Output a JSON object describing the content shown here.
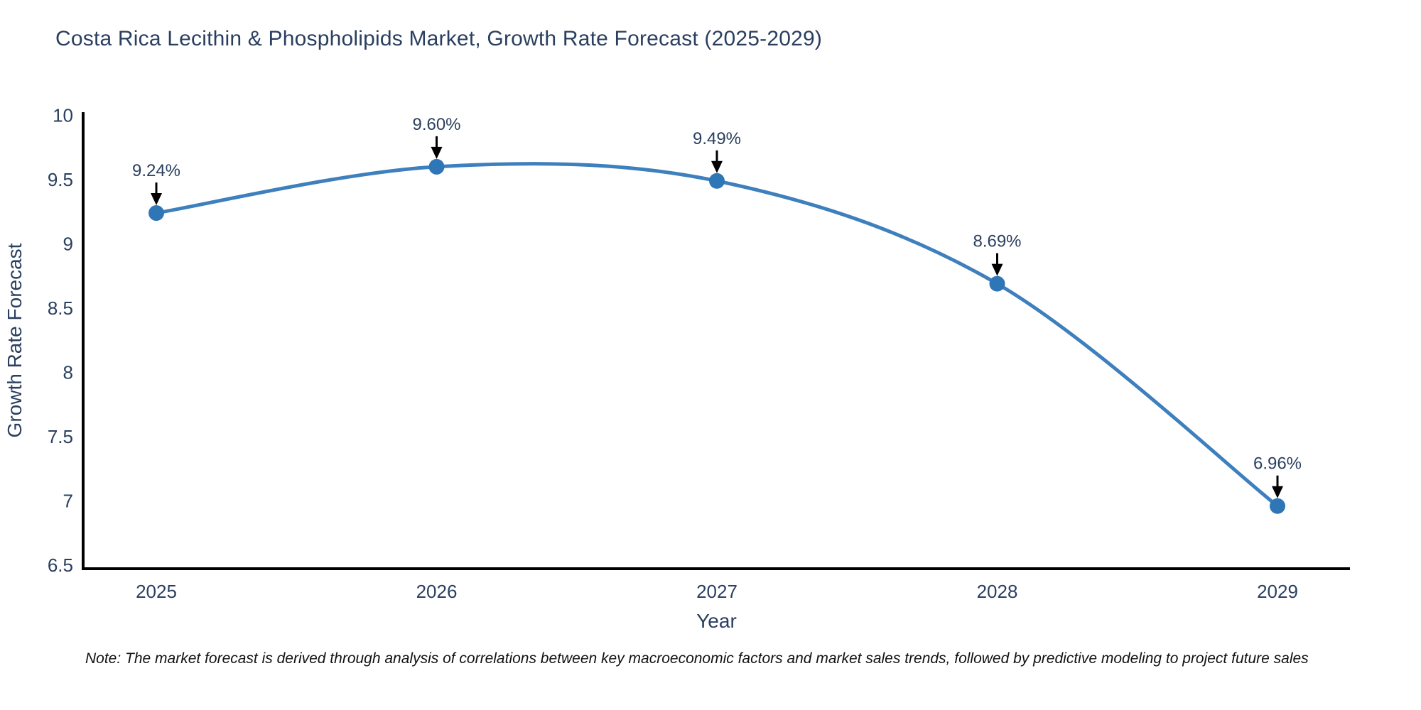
{
  "title": "Costa Rica Lecithin & Phospholipids Market, Growth Rate Forecast (2025-2029)",
  "note": "Note: The market forecast is derived through analysis of correlations between key macroeconomic factors and market sales trends, followed by predictive modeling to project future sales",
  "chart_data": {
    "type": "line",
    "x": [
      "2025",
      "2026",
      "2027",
      "2028",
      "2029"
    ],
    "values": [
      9.24,
      9.6,
      9.49,
      8.69,
      6.96
    ],
    "point_labels": [
      "9.24%",
      "9.60%",
      "9.49%",
      "8.69%",
      "6.96%"
    ],
    "xlabel": "Year",
    "ylabel": "Growth Rate Forecast",
    "ylim": [
      6.5,
      10
    ],
    "yticks": [
      6.5,
      7,
      7.5,
      8,
      8.5,
      9,
      9.5,
      10
    ],
    "grid": false,
    "legend": "none",
    "line_shape": "spline",
    "colors": {
      "line": "#3e7fbd",
      "marker": "#2e76b6",
      "axis_line": "#000000",
      "tick_text": "#2a3f5f",
      "annotation_text": "#2a3f5f",
      "annotation_arrow": "#000000"
    }
  }
}
